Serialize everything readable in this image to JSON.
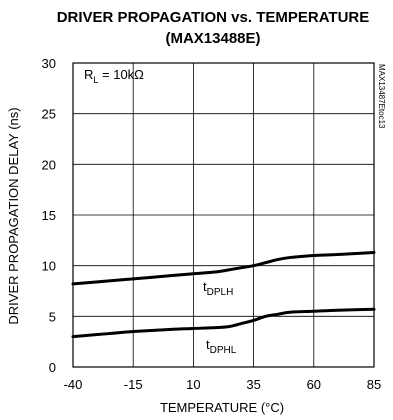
{
  "chart_data": {
    "type": "line",
    "title": "DRIVER PROPAGATION vs. TEMPERATURE",
    "subtitle": "(MAX13488E)",
    "xlabel": "TEMPERATURE (°C)",
    "ylabel": "DRIVER PROPAGATION DELAY (ns)",
    "xlim": [
      -40,
      85
    ],
    "ylim": [
      0,
      30
    ],
    "xticks": [
      -40,
      -15,
      10,
      35,
      60,
      85
    ],
    "yticks": [
      0,
      5,
      10,
      15,
      20,
      25,
      30
    ],
    "xtick_labels": [
      "-40",
      "-15",
      "10",
      "35",
      "60",
      "85"
    ],
    "ytick_labels": [
      "0",
      "5",
      "10",
      "15",
      "20",
      "25",
      "30"
    ],
    "grid": true,
    "condition": {
      "prefix": "R",
      "sub": "L",
      "suffix": " = 10kΩ"
    },
    "figure_code": "MAX13487Etoc13",
    "series": [
      {
        "name": "tDPLH",
        "label_main": "t",
        "label_sub": "DPLH",
        "x": [
          -40,
          -25,
          -15,
          0,
          10,
          20,
          25,
          30,
          35,
          40,
          45,
          50,
          60,
          70,
          85
        ],
        "y": [
          8.2,
          8.5,
          8.7,
          9.0,
          9.2,
          9.4,
          9.6,
          9.8,
          10.0,
          10.3,
          10.6,
          10.8,
          11.0,
          11.1,
          11.3
        ]
      },
      {
        "name": "tDPHL",
        "label_main": "t",
        "label_sub": "DPHL",
        "x": [
          -40,
          -25,
          -15,
          0,
          10,
          20,
          25,
          30,
          35,
          40,
          45,
          50,
          60,
          70,
          85
        ],
        "y": [
          3.0,
          3.3,
          3.5,
          3.7,
          3.8,
          3.9,
          4.0,
          4.3,
          4.6,
          5.0,
          5.2,
          5.4,
          5.5,
          5.6,
          5.7
        ]
      }
    ]
  }
}
